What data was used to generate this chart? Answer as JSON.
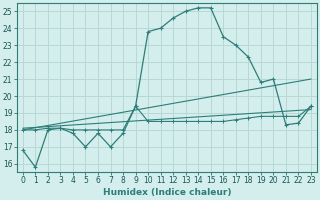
{
  "xlabel": "Humidex (Indice chaleur)",
  "ylabel": "",
  "xlim": [
    -0.5,
    23.5
  ],
  "ylim": [
    15.5,
    25.5
  ],
  "yticks": [
    16,
    17,
    18,
    19,
    20,
    21,
    22,
    23,
    24,
    25
  ],
  "xticks": [
    0,
    1,
    2,
    3,
    4,
    5,
    6,
    7,
    8,
    9,
    10,
    11,
    12,
    13,
    14,
    15,
    16,
    17,
    18,
    19,
    20,
    21,
    22,
    23
  ],
  "bg_color": "#d4eeed",
  "grid_color": "#b8d8d6",
  "line_color": "#2d7d78",
  "line1_x": [
    0,
    1,
    2,
    3,
    4,
    5,
    6,
    7,
    8,
    9,
    10,
    11,
    12,
    13,
    14,
    15,
    16,
    17,
    18,
    19,
    20,
    21,
    22,
    23
  ],
  "line1_y": [
    16.8,
    15.8,
    18.0,
    18.1,
    17.8,
    17.0,
    17.8,
    17.0,
    17.8,
    19.4,
    23.8,
    24.0,
    24.6,
    25.0,
    25.2,
    25.2,
    23.5,
    23.0,
    22.3,
    20.8,
    21.0,
    18.3,
    18.4,
    19.4
  ],
  "line2_x": [
    0,
    1,
    2,
    3,
    4,
    5,
    6,
    7,
    8,
    9,
    10,
    11,
    12,
    13,
    14,
    15,
    16,
    17,
    18,
    19,
    20,
    21,
    22,
    23
  ],
  "line2_y": [
    18.0,
    18.0,
    18.1,
    18.1,
    18.0,
    18.0,
    18.0,
    18.0,
    18.0,
    19.4,
    18.5,
    18.5,
    18.5,
    18.5,
    18.5,
    18.5,
    18.5,
    18.6,
    18.7,
    18.8,
    18.8,
    18.8,
    18.8,
    19.4
  ],
  "line3_x": [
    0,
    23
  ],
  "line3_y": [
    18.0,
    21.0
  ],
  "line4_x": [
    0,
    23
  ],
  "line4_y": [
    18.1,
    19.2
  ]
}
